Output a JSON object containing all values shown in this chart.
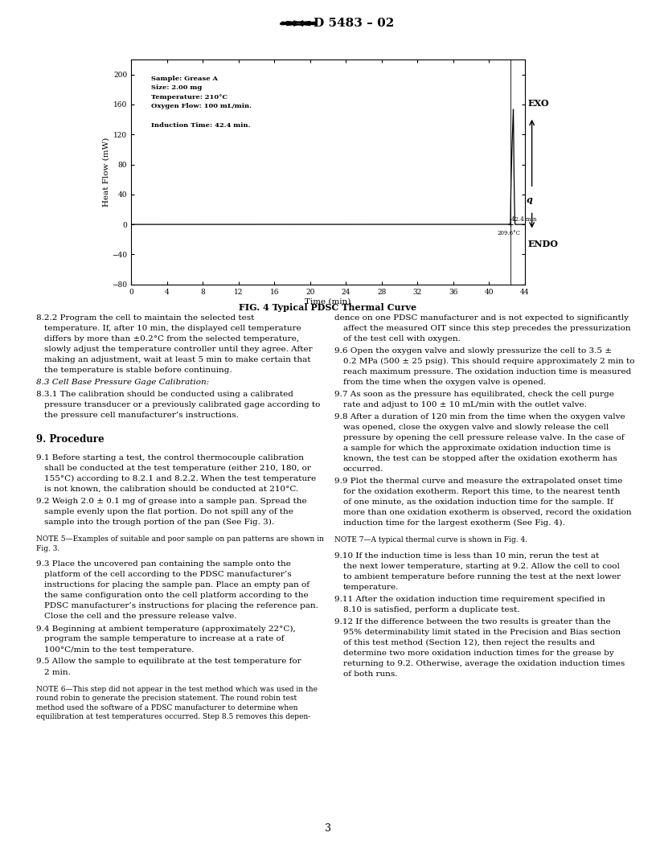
{
  "page_title": "D 5483 – 02",
  "fig_caption": "FIG. 4 Typical PDSC Thermal Curve",
  "chart": {
    "xlabel": "Time (min)",
    "ylabel": "Heat Flow (mW)",
    "xlim": [
      0.0,
      44.0
    ],
    "ylim": [
      -80,
      220
    ],
    "xticks": [
      0.0,
      4.0,
      8.0,
      12.0,
      16.0,
      20.0,
      24.0,
      28.0,
      32.0,
      36.0,
      40.0,
      44.0
    ],
    "yticks": [
      -80,
      -40,
      0,
      40,
      80,
      120,
      160,
      200
    ],
    "annotation_temp": "209.6°C",
    "annotation_time_label": "42.4 min",
    "t_onset": 42.4,
    "peak_height": 155,
    "sample_lines": [
      "Sample: Grease A",
      "Size: 2.00 mg",
      "Temperature: 210°C",
      "Oxygen Flow: 100 mL/min.",
      "",
      "Induction Time: 42.4 min."
    ]
  },
  "left_col_text": "    8.2.2  Program the cell to maintain the selected test temperature. If, after 10 min, the displayed cell temperature differs by more than ±0.2°C from the selected temperature, slowly adjust the temperature controller until they agree. After making an adjustment, wait at least 5 min to make certain that the temperature is stable before continuing.\n    8.3  Cell Base Pressure Gage Calibration:\n    8.3.1  The calibration should be conducted using a calibrated pressure transducer or a previously calibrated gage according to the pressure cell manufacturer’s instructions.\n\n9.  Procedure\n\n    9.1  Before starting a test, the control thermocouple calibration shall be conducted at the test temperature (either 210, 180, or 155°C) according to 8.2.1 and 8.2.2. When the test temperature is not known, the calibration should be conducted at 210°C.\n    9.2  Weigh 2.0 ± 0.1 mg of grease into a sample pan. Spread the sample evenly upon the flat portion. Do not spill any of the sample into the trough portion of the pan (See Fig. 3).\n\n    NOTE 5—Examples of suitable and poor sample on pan patterns are shown in Fig. 3.\n\n    9.3  Place the uncovered pan containing the sample onto the platform of the cell according to the PDSC manufacturer’s instructions for placing the sample pan. Place an empty pan of the same configuration onto the cell platform according to the PDSC manufacturer’s instructions for placing the reference pan. Close the cell and the pressure release valve.\n    9.4  Beginning at ambient temperature (approximately 22°C), program the sample temperature to increase at a rate of 100°C/min to the test temperature.\n    9.5  Allow the sample to equilibrate at the test temperature for 2 min.\n\n    NOTE 6—This step did not appear in the test method which was used in the round robin to generate the precision statement. The round robin test method used the software of a PDSC manufacturer to determine when equilibration at test temperatures occurred. Step 8.5 removes this depen-",
  "right_col_text": "dence on one PDSC manufacturer and is not expected to significantly affect the measured OIT since this step precedes the pressurization of the test cell with oxygen.\n    9.6  Open the oxygen valve and slowly pressurize the cell to 3.5 ± 0.2 MPa (500 ± 25 psig). This should require approximately 2 min to reach maximum pressure. The oxidation induction time is measured from the time when the oxygen valve is opened.\n    9.7  As soon as the pressure has equilibrated, check the cell purge rate and adjust to 100 ± 10 mL/min with the outlet valve.\n    9.8  After a duration of 120 min from the time when the oxygen valve was opened, close the oxygen valve and slowly release the cell pressure by opening the cell pressure release valve. In the case of a sample for which the approximate oxidation induction time is known, the test can be stopped after the oxidation exotherm has occurred.\n    9.9  Plot the thermal curve and measure the extrapolated onset time for the oxidation exotherm. Report this time, to the nearest tenth of one minute, as the oxidation induction time for the sample. If more than one oxidation exotherm is observed, record the oxidation induction time for the largest exotherm (See Fig. 4).\n\n    NOTE 7—A typical thermal curve is shown in Fig. 4.\n\n    9.10  If the induction time is less than 10 min, rerun the test at the next lower temperature, starting at 9.2. Allow the cell to cool to ambient temperature before running the test at the next lower temperature.\n    9.11  After the oxidation induction time requirement specified in 8.10 is satisfied, perform a duplicate test.\n    9.12  If the difference between the two results is greater than the 95% determinability limit stated in the Precision and Bias section of this test method (Section 12), then reject the results and determine two more oxidation induction times for the grease by returning to 9.2. Otherwise, average the oxidation induction times of both runs.",
  "page_number": "3"
}
